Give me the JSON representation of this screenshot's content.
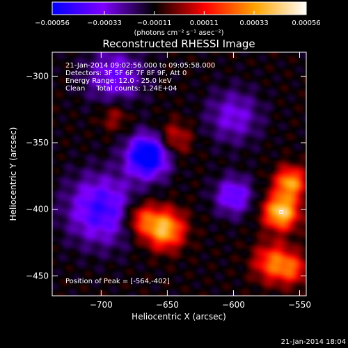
{
  "chart_data": {
    "type": "heatmap",
    "title": "Reconstructed RHESSI Image",
    "xlabel": "Heliocentric X (arcsec)",
    "ylabel": "Heliocentric Y (arcsec)",
    "xlim": [
      -737,
      -545
    ],
    "ylim": [
      -465,
      -282
    ],
    "x_ticks": [
      -700,
      -650,
      -600,
      -550
    ],
    "y_ticks": [
      -300,
      -350,
      -400,
      -450
    ],
    "x_tick_labels": [
      "−700",
      "−650",
      "−600",
      "−550"
    ],
    "y_tick_labels": [
      "−300",
      "−350",
      "−400",
      "−450"
    ],
    "colorbar": {
      "range": [
        -0.00056,
        0.00056
      ],
      "ticks": [
        -0.00056,
        -0.00033,
        -0.00011,
        0.00011,
        0.00033,
        0.00056
      ],
      "tick_labels": [
        "−0.00056",
        "−0.00033",
        "−0.00011",
        "0.00011",
        "0.00033",
        "0.00056"
      ],
      "unit_label": "(photons cm⁻² s⁻¹ asec⁻²)",
      "colors": [
        "#0000ff",
        "#7f00ff",
        "#000000",
        "#ff0000",
        "#ffa500",
        "#ffffff"
      ]
    },
    "annotations": [
      "21-Jan-2014 09:02:56.000 to 09:05:58.000",
      "Detectors: 3F 5F 6F 7F 8F 9F, Att 0",
      "Energy Range: 12.0 - 25.0 keV",
      "Clean     Total counts: 1.24E+04"
    ],
    "peak_label": "Position of Peak = [-564,-402]",
    "peak_position": [
      -564,
      -402
    ],
    "sources": [
      {
        "x": -652,
        "y": -415,
        "amplitude": 0.0005,
        "sigma": 10
      },
      {
        "x": -670,
        "y": -407,
        "amplitude": 0.0003,
        "sigma": 9
      },
      {
        "x": -564,
        "y": -402,
        "amplitude": 0.00056,
        "sigma": 9
      },
      {
        "x": -557,
        "y": -380,
        "amplitude": 0.00045,
        "sigma": 8
      },
      {
        "x": -570,
        "y": -440,
        "amplitude": 0.00035,
        "sigma": 10
      },
      {
        "x": -645,
        "y": -347,
        "amplitude": 0.0002,
        "sigma": 9
      },
      {
        "x": -555,
        "y": -445,
        "amplitude": 0.00025,
        "sigma": 8
      },
      {
        "x": -690,
        "y": -330,
        "amplitude": 0.00015,
        "sigma": 8
      },
      {
        "x": -665,
        "y": -360,
        "amplitude": -0.00056,
        "sigma": 11
      },
      {
        "x": -700,
        "y": -400,
        "amplitude": -0.00035,
        "sigma": 18
      },
      {
        "x": -690,
        "y": -300,
        "amplitude": -0.00025,
        "sigma": 15
      },
      {
        "x": -600,
        "y": -390,
        "amplitude": -0.0003,
        "sigma": 10
      },
      {
        "x": -600,
        "y": -330,
        "amplitude": -0.00022,
        "sigma": 14
      }
    ]
  },
  "footer": {
    "timestamp": "21-Jan-2014 18:04"
  }
}
